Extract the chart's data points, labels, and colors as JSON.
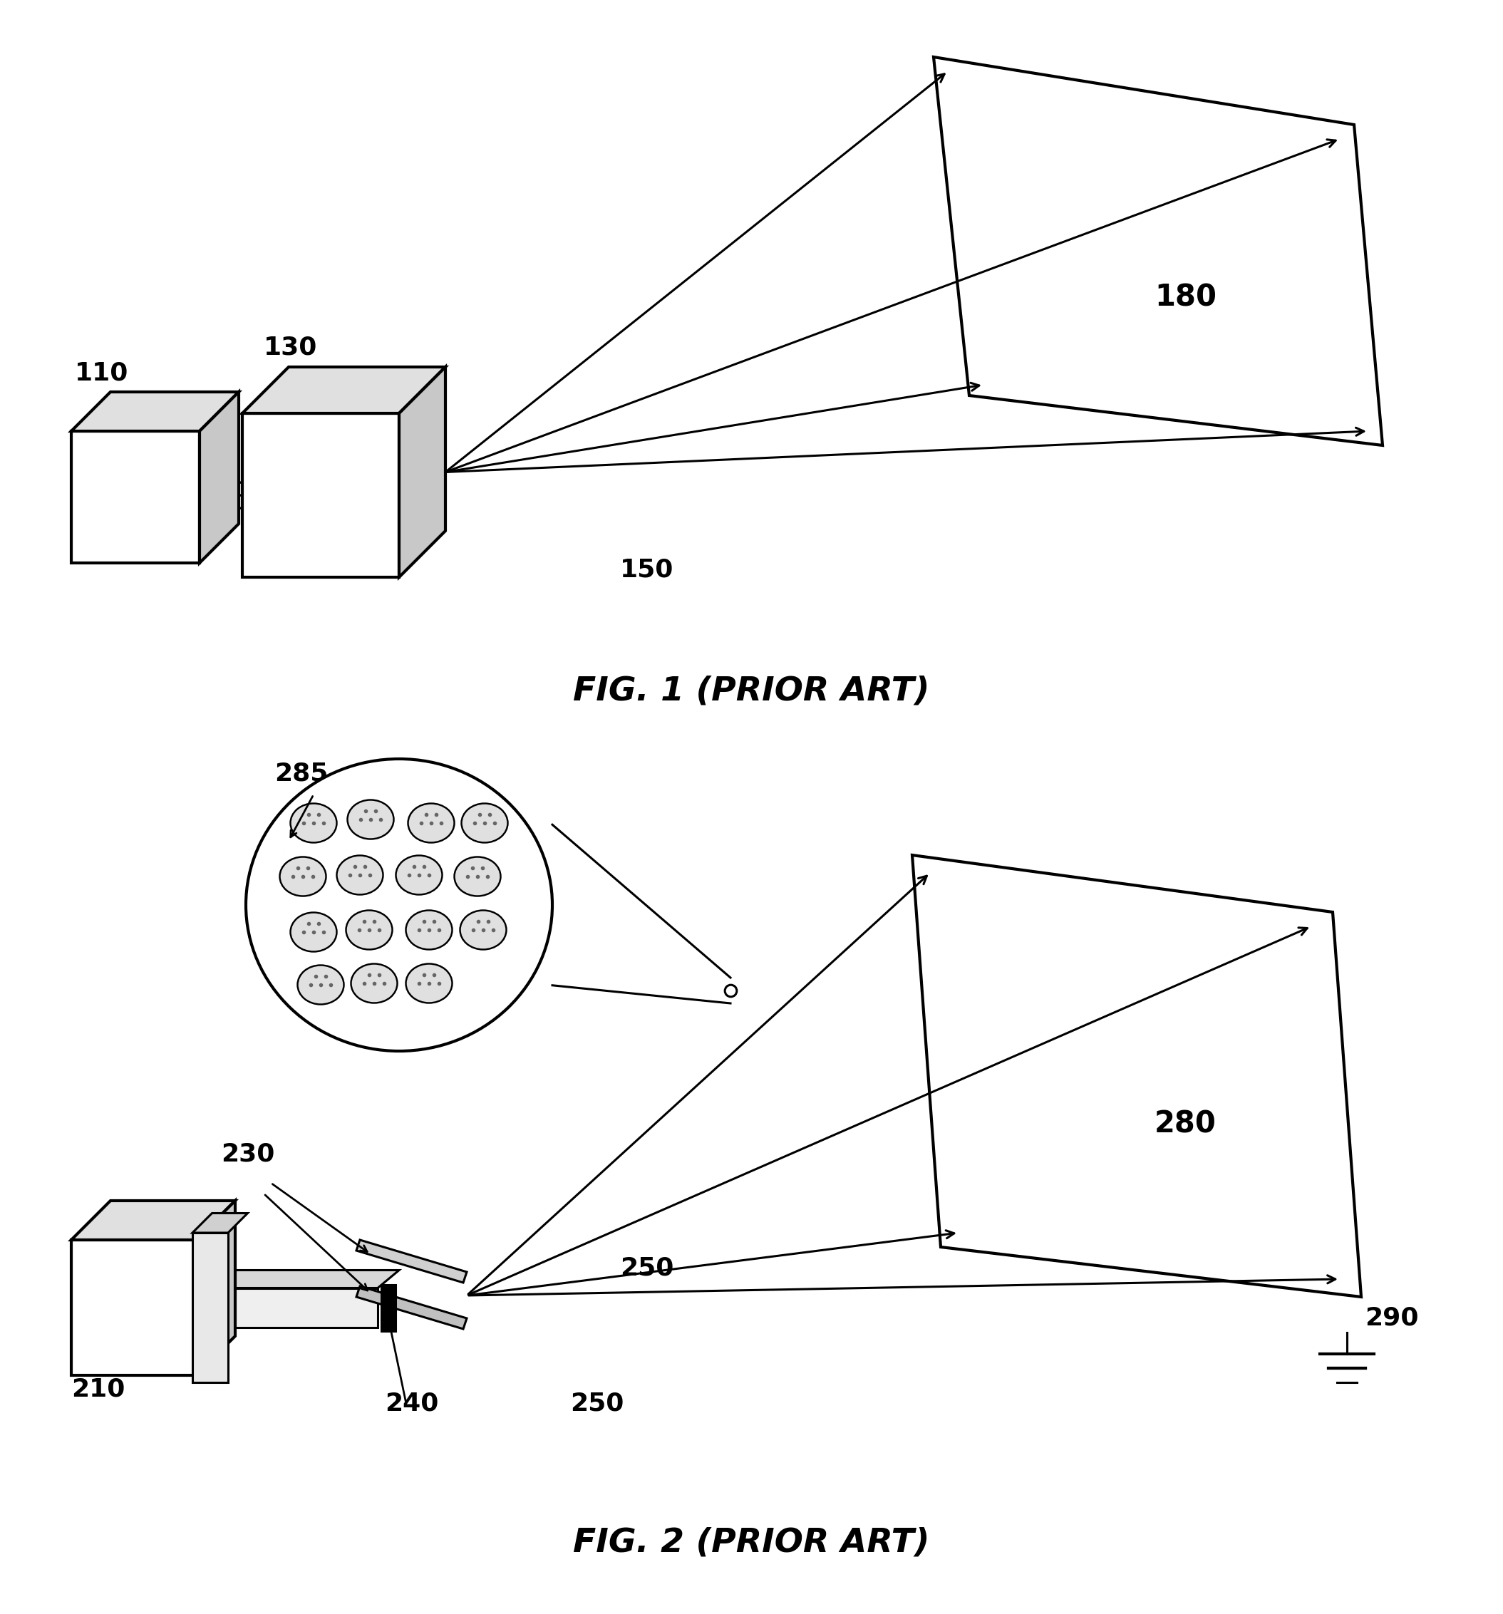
{
  "fig1_title": "FIG. 1 (PRIOR ART)",
  "fig2_title": "FIG. 2 (PRIOR ART)",
  "label_110": "110",
  "label_130": "130",
  "label_150": "150",
  "label_180": "180",
  "label_210": "210",
  "label_230": "230",
  "label_240": "240",
  "label_250a": "250",
  "label_250b": "250",
  "label_280": "280",
  "label_285": "285",
  "label_290": "290",
  "bg_color": "#ffffff",
  "line_color": "#000000",
  "lw": 2.2,
  "lw_thick": 3.0,
  "fontsize_label": 26,
  "fontsize_title": 34
}
